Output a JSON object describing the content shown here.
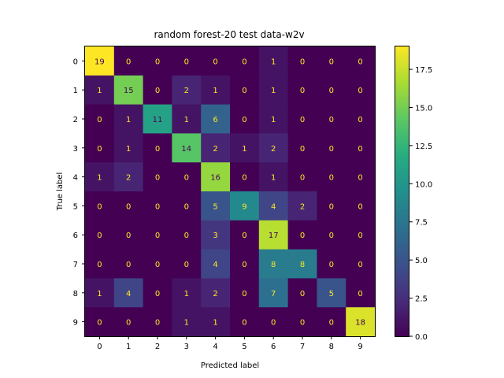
{
  "chart_data": {
    "type": "heatmap",
    "title": "random forest-20 test data-w2v",
    "xlabel": "Predicted label",
    "ylabel": "True label",
    "x_categories": [
      "0",
      "1",
      "2",
      "3",
      "4",
      "5",
      "6",
      "7",
      "8",
      "9"
    ],
    "y_categories": [
      "0",
      "1",
      "2",
      "3",
      "4",
      "5",
      "6",
      "7",
      "8",
      "9"
    ],
    "values": [
      [
        19,
        0,
        0,
        0,
        0,
        0,
        1,
        0,
        0,
        0
      ],
      [
        1,
        15,
        0,
        2,
        1,
        0,
        1,
        0,
        0,
        0
      ],
      [
        0,
        1,
        11,
        1,
        6,
        0,
        1,
        0,
        0,
        0
      ],
      [
        0,
        1,
        0,
        14,
        2,
        1,
        2,
        0,
        0,
        0
      ],
      [
        1,
        2,
        0,
        0,
        16,
        0,
        1,
        0,
        0,
        0
      ],
      [
        0,
        0,
        0,
        0,
        5,
        9,
        4,
        2,
        0,
        0
      ],
      [
        0,
        0,
        0,
        0,
        3,
        0,
        17,
        0,
        0,
        0
      ],
      [
        0,
        0,
        0,
        0,
        4,
        0,
        8,
        8,
        0,
        0
      ],
      [
        1,
        4,
        0,
        1,
        2,
        0,
        7,
        0,
        5,
        0
      ],
      [
        0,
        0,
        0,
        1,
        1,
        0,
        0,
        0,
        0,
        18
      ]
    ],
    "colormap": "viridis",
    "vmin": 0,
    "vmax": 19,
    "colorbar_ticks": [
      "0.0",
      "2.5",
      "5.0",
      "7.5",
      "10.0",
      "12.5",
      "15.0",
      "17.5"
    ],
    "colorbar_tick_values": [
      0,
      2.5,
      5,
      7.5,
      10,
      12.5,
      15,
      17.5
    ],
    "text_colors": {
      "low": "#fde725",
      "high": "#440154"
    }
  }
}
